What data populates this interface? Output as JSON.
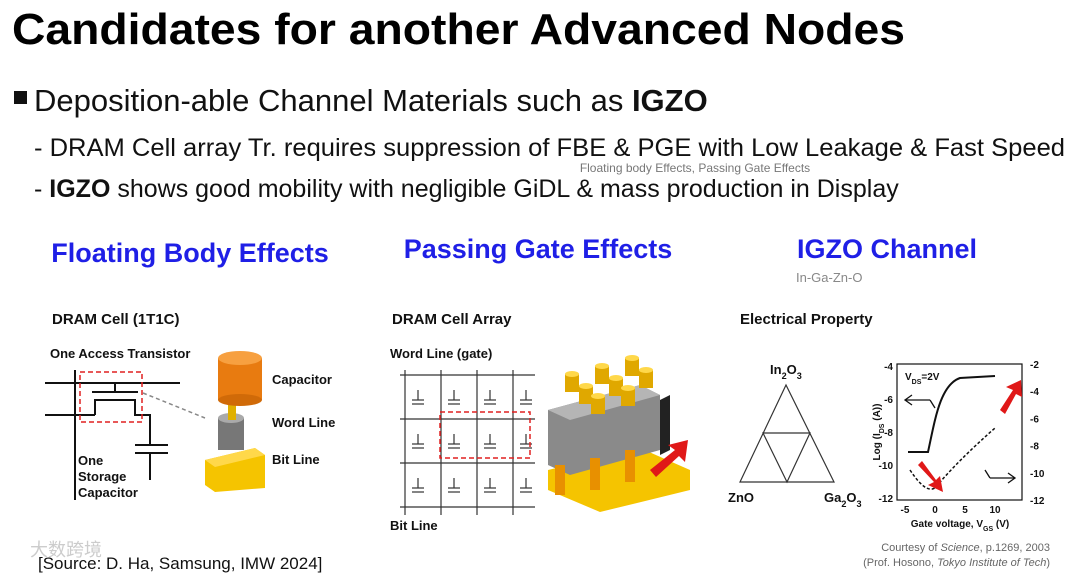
{
  "header": {
    "title": "Candidates for another Advanced Nodes"
  },
  "bullet": {
    "parts": [
      "Deposition-able Channel Materials such as ",
      "IGZO"
    ]
  },
  "sub_points": [
    {
      "parts": [
        "- DRAM Cell array Tr. requires suppression of FBE & PGE with Low Leakage & Fast Speed"
      ],
      "note": "Floating body Effects, Passing Gate Effects"
    },
    {
      "parts": [
        "- ",
        "IGZO",
        " shows good mobility with negligible GiDL & mass production in Display"
      ]
    }
  ],
  "sections": [
    {
      "heading": "Floating Body Effects",
      "figure_title": "DRAM Cell (1T1C)",
      "labels": [
        "One Access Transistor",
        "Capacitor",
        "Word Line",
        "Bit Line",
        "One",
        "Storage",
        "Capacitor"
      ]
    },
    {
      "heading": "Passing Gate Effects",
      "figure_title": "DRAM Cell Array",
      "labels": [
        "Word Line (gate)",
        "Bit Line"
      ]
    },
    {
      "heading": "IGZO Channel",
      "subheading": "In-Ga-Zn-O",
      "figure_title": "Electrical Property",
      "triangle": {
        "top": [
          "In",
          "2",
          "O",
          "3"
        ],
        "left": [
          "ZnO"
        ],
        "right": [
          "Ga",
          "2",
          "O",
          "3"
        ]
      },
      "graph": {
        "annotation": [
          "V",
          "DS",
          "=2V"
        ],
        "y_label": [
          "Log (I",
          "DS",
          " (A))"
        ],
        "x_label": [
          "Gate voltage, V",
          "GS",
          " (V)"
        ],
        "left_ticks": [
          "-4",
          "-6",
          "-8",
          "-10",
          "-12"
        ],
        "right_ticks": [
          "-2",
          "-4",
          "-6",
          "-8",
          "-10",
          "-12"
        ],
        "x_ticks": [
          "-5",
          "0",
          "5",
          "10"
        ]
      },
      "credit": [
        [
          "Courtesy of ",
          "Science",
          ", p.1269, 2003"
        ],
        [
          "(Prof. Hosono, ",
          "Tokyo Institute of Tech",
          ")"
        ]
      ]
    }
  ],
  "footer": {
    "source": "[Source: D. Ha, Samsung, IMW 2024]",
    "watermark": "大数跨境"
  }
}
